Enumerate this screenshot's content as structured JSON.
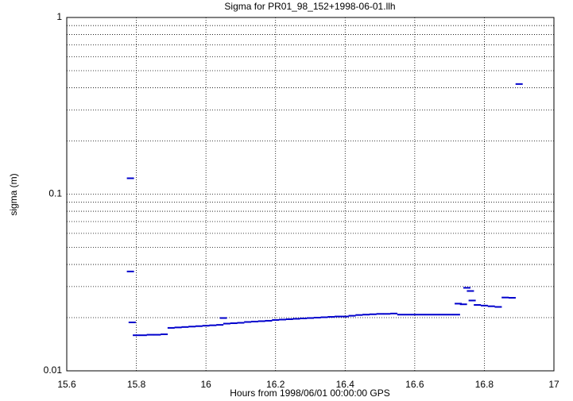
{
  "chart_data": {
    "type": "scatter",
    "title": "Sigma for PR01_98_152+1998-06-01.llh",
    "x_label": "Hours from 1998/06/01 00:00:00 GPS",
    "y_label": "sigma (m)",
    "log_y": true,
    "grid": true,
    "color": "#0000cc",
    "xlim": [
      15.6,
      17
    ],
    "xticks": [
      15.6,
      15.8,
      16,
      16.2,
      16.4,
      16.6,
      16.8,
      17
    ],
    "ylim": [
      0.01,
      1
    ],
    "yticks": [
      0.01,
      0.1,
      1
    ],
    "y_minor_ticks": [
      0.02,
      0.03,
      0.04,
      0.05,
      0.06,
      0.07,
      0.08,
      0.09,
      0.2,
      0.3,
      0.4,
      0.5,
      0.6,
      0.7,
      0.8,
      0.9
    ],
    "x": [
      15.783,
      15.783,
      15.788,
      15.8,
      15.82,
      15.84,
      15.86,
      15.88,
      15.9,
      15.92,
      15.94,
      15.96,
      15.98,
      16.0,
      16.02,
      16.04,
      16.05,
      16.06,
      16.08,
      16.1,
      16.12,
      16.14,
      16.16,
      16.18,
      16.2,
      16.22,
      16.24,
      16.26,
      16.28,
      16.3,
      16.32,
      16.34,
      16.36,
      16.38,
      16.4,
      16.42,
      16.44,
      16.46,
      16.48,
      16.5,
      16.52,
      16.54,
      16.56,
      16.58,
      16.6,
      16.62,
      16.64,
      16.66,
      16.68,
      16.7,
      16.72,
      16.725,
      16.74,
      16.75,
      16.76,
      16.765,
      16.78,
      16.8,
      16.82,
      16.84,
      16.86,
      16.88,
      16.9
    ],
    "values": [
      0.123,
      0.0365,
      0.0188,
      0.0159,
      0.0159,
      0.016,
      0.016,
      0.0161,
      0.0175,
      0.0176,
      0.0177,
      0.0178,
      0.0179,
      0.018,
      0.0181,
      0.0182,
      0.0199,
      0.0185,
      0.0186,
      0.0187,
      0.0189,
      0.019,
      0.0191,
      0.0192,
      0.0194,
      0.0195,
      0.0196,
      0.0197,
      0.0198,
      0.0199,
      0.02,
      0.0201,
      0.0202,
      0.0203,
      0.0203,
      0.0205,
      0.0207,
      0.0208,
      0.0209,
      0.021,
      0.021,
      0.0211,
      0.0208,
      0.0208,
      0.0208,
      0.0208,
      0.0208,
      0.0208,
      0.0208,
      0.0208,
      0.0208,
      0.024,
      0.0238,
      0.0295,
      0.0283,
      0.025,
      0.0236,
      0.0234,
      0.0232,
      0.023,
      0.026,
      0.0259,
      0.42
    ]
  }
}
